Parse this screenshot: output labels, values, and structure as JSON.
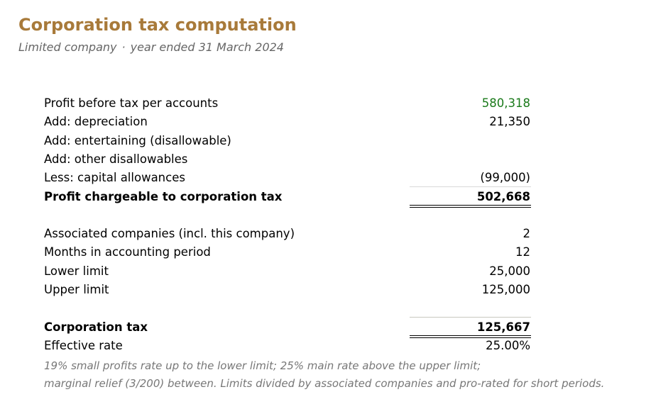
{
  "header": {
    "title": "Corporation tax computation",
    "entity": "Limited company",
    "separator": "·",
    "period": "year ended 31 March 2024"
  },
  "computation": {
    "rows": [
      {
        "label": "Profit before tax per accounts",
        "value": "580,318"
      },
      {
        "label": "Add: depreciation",
        "value": "21,350"
      },
      {
        "label": "Add: entertaining (disallowable)",
        "value": ""
      },
      {
        "label": "Add: other disallowables",
        "value": ""
      },
      {
        "label": "Less: capital allowances",
        "value": "(99,000)"
      }
    ],
    "total": {
      "label": "Profit chargeable to corporation tax",
      "value": "502,668"
    }
  },
  "limits": {
    "rows": [
      {
        "label": "Associated companies (incl. this company)",
        "value": "2"
      },
      {
        "label": "Months in accounting period",
        "value": "12"
      },
      {
        "label": "Lower limit",
        "value": "25,000"
      },
      {
        "label": "Upper limit",
        "value": "125,000"
      }
    ]
  },
  "result": {
    "tax": {
      "label": "Corporation tax",
      "value": "125,667"
    },
    "rate": {
      "label": "Effective rate",
      "value": "25.00%"
    }
  },
  "notes": [
    "19% small profits rate up to the lower limit; 25% main rate above the upper limit;",
    "marginal relief (3/200) between. Limits divided by associated companies and pro-rated for short periods."
  ],
  "colors": {
    "title": "#a87a3a",
    "positive_value": "#1a7a1a"
  }
}
